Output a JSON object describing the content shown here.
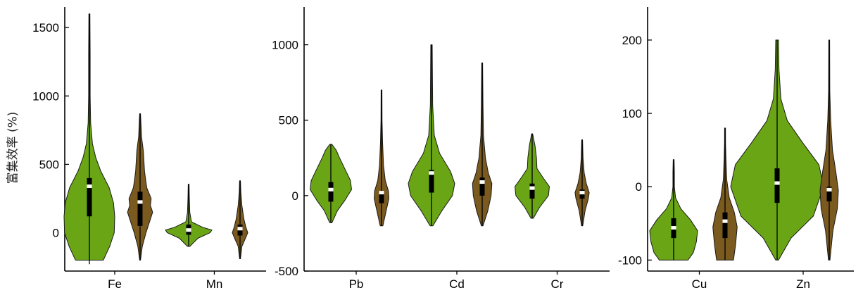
{
  "y_axis_label": "富集效率 (%)",
  "colors": {
    "green": "#6aa516",
    "brown": "#7b5a20",
    "box": "#000000",
    "median": "#ffffff"
  },
  "chart_data": [
    {
      "type": "violin",
      "ylim": [
        -280,
        1650
      ],
      "yticks": [
        0,
        500,
        1000,
        1500
      ],
      "ytick_labels": [
        "0",
        "500",
        "1000",
        "1500"
      ],
      "categories": [
        "Fe",
        "Mn"
      ],
      "violins": [
        {
          "category": "Fe",
          "color": "green",
          "min": -230,
          "max": 1600,
          "q1": 120,
          "q3": 400,
          "median": 340,
          "density": [
            [
              -200,
              0.55
            ],
            [
              -100,
              0.8
            ],
            [
              0,
              0.98
            ],
            [
              120,
              1.0
            ],
            [
              220,
              0.95
            ],
            [
              330,
              0.78
            ],
            [
              450,
              0.45
            ],
            [
              550,
              0.25
            ],
            [
              650,
              0.12
            ],
            [
              800,
              0.05
            ],
            [
              1000,
              0.03
            ],
            [
              1300,
              0.03
            ],
            [
              1600,
              0.02
            ]
          ]
        },
        {
          "category": "Fe",
          "color": "brown",
          "min": -200,
          "max": 870,
          "q1": 50,
          "q3": 300,
          "median": 225,
          "density": [
            [
              -200,
              0.02
            ],
            [
              -100,
              0.15
            ],
            [
              0,
              0.4
            ],
            [
              100,
              0.7
            ],
            [
              150,
              0.85
            ],
            [
              200,
              0.7
            ],
            [
              250,
              0.75
            ],
            [
              330,
              0.45
            ],
            [
              450,
              0.3
            ],
            [
              600,
              0.22
            ],
            [
              700,
              0.1
            ],
            [
              870,
              0.01
            ]
          ]
        },
        {
          "category": "Mn",
          "color": "green",
          "min": -100,
          "max": 355,
          "q1": -15,
          "q3": 60,
          "median": 20,
          "density": [
            [
              -100,
              0.05
            ],
            [
              -40,
              0.4
            ],
            [
              0,
              0.92
            ],
            [
              20,
              1.0
            ],
            [
              40,
              0.6
            ],
            [
              80,
              0.12
            ],
            [
              150,
              0.05
            ],
            [
              250,
              0.03
            ],
            [
              355,
              0.01
            ]
          ]
        },
        {
          "category": "Mn",
          "color": "brown",
          "min": -190,
          "max": 380,
          "q1": -20,
          "q3": 60,
          "median": 30,
          "density": [
            [
              -190,
              0.01
            ],
            [
              -100,
              0.12
            ],
            [
              -40,
              0.35
            ],
            [
              0,
              0.5
            ],
            [
              40,
              0.38
            ],
            [
              100,
              0.25
            ],
            [
              200,
              0.12
            ],
            [
              300,
              0.05
            ],
            [
              380,
              0.01
            ]
          ]
        }
      ]
    },
    {
      "type": "violin",
      "ylim": [
        -500,
        1250
      ],
      "yticks": [
        -500,
        0,
        500,
        1000
      ],
      "ytick_labels": [
        "-500",
        "0",
        "500",
        "1000"
      ],
      "categories": [
        "Pb",
        "Cd",
        "Cr"
      ],
      "violins": [
        {
          "category": "Pb",
          "color": "green",
          "min": -180,
          "max": 340,
          "q1": -40,
          "q3": 90,
          "median": 40,
          "density": [
            [
              -180,
              0.05
            ],
            [
              -100,
              0.3
            ],
            [
              -30,
              0.65
            ],
            [
              40,
              0.95
            ],
            [
              100,
              0.9
            ],
            [
              160,
              0.7
            ],
            [
              250,
              0.4
            ],
            [
              300,
              0.25
            ],
            [
              340,
              0.05
            ]
          ]
        },
        {
          "category": "Pb",
          "color": "brown",
          "min": -200,
          "max": 700,
          "q1": -50,
          "q3": 30,
          "median": 20,
          "density": [
            [
              -200,
              0.1
            ],
            [
              -100,
              0.35
            ],
            [
              -20,
              0.55
            ],
            [
              30,
              0.52
            ],
            [
              100,
              0.28
            ],
            [
              200,
              0.15
            ],
            [
              350,
              0.08
            ],
            [
              500,
              0.04
            ],
            [
              700,
              0.01
            ]
          ]
        },
        {
          "category": "Cd",
          "color": "green",
          "min": -200,
          "max": 1000,
          "q1": 20,
          "q3": 170,
          "median": 150,
          "density": [
            [
              -200,
              0.06
            ],
            [
              -100,
              0.45
            ],
            [
              0,
              0.9
            ],
            [
              80,
              1.0
            ],
            [
              160,
              0.82
            ],
            [
              280,
              0.35
            ],
            [
              400,
              0.12
            ],
            [
              600,
              0.05
            ],
            [
              800,
              0.04
            ],
            [
              1000,
              0.03
            ]
          ]
        },
        {
          "category": "Cd",
          "color": "brown",
          "min": -200,
          "max": 880,
          "q1": 0,
          "q3": 120,
          "median": 90,
          "density": [
            [
              -200,
              0.05
            ],
            [
              -100,
              0.35
            ],
            [
              0,
              0.55
            ],
            [
              80,
              0.6
            ],
            [
              150,
              0.38
            ],
            [
              250,
              0.2
            ],
            [
              400,
              0.08
            ],
            [
              600,
              0.05
            ],
            [
              880,
              0.01
            ]
          ]
        },
        {
          "category": "Cr",
          "color": "green",
          "min": -150,
          "max": 410,
          "q1": -20,
          "q3": 80,
          "median": 50,
          "density": [
            [
              -150,
              0.05
            ],
            [
              -80,
              0.3
            ],
            [
              0,
              0.68
            ],
            [
              60,
              0.72
            ],
            [
              120,
              0.45
            ],
            [
              180,
              0.2
            ],
            [
              250,
              0.18
            ],
            [
              330,
              0.12
            ],
            [
              410,
              0.02
            ]
          ]
        },
        {
          "category": "Cr",
          "color": "brown",
          "min": -200,
          "max": 370,
          "q1": -20,
          "q3": 40,
          "median": 20,
          "density": [
            [
              -200,
              0.04
            ],
            [
              -100,
              0.2
            ],
            [
              -20,
              0.42
            ],
            [
              20,
              0.48
            ],
            [
              80,
              0.28
            ],
            [
              150,
              0.14
            ],
            [
              250,
              0.06
            ],
            [
              370,
              0.01
            ]
          ]
        }
      ]
    },
    {
      "type": "violin",
      "ylim": [
        -115,
        245
      ],
      "yticks": [
        -100,
        0,
        100,
        200
      ],
      "ytick_labels": [
        "-100",
        "0",
        "100",
        "200"
      ],
      "categories": [
        "Cu",
        "Zn"
      ],
      "violins": [
        {
          "category": "Cu",
          "color": "green",
          "min": -100,
          "max": 37,
          "q1": -70,
          "q3": -43,
          "median": -56,
          "density": [
            [
              -100,
              0.6
            ],
            [
              -90,
              0.82
            ],
            [
              -75,
              0.95
            ],
            [
              -60,
              1.0
            ],
            [
              -45,
              0.7
            ],
            [
              -30,
              0.3
            ],
            [
              -15,
              0.08
            ],
            [
              0,
              0.03
            ],
            [
              20,
              0.03
            ],
            [
              37,
              0.01
            ]
          ]
        },
        {
          "category": "Cu",
          "color": "brown",
          "min": -100,
          "max": 80,
          "q1": -70,
          "q3": -35,
          "median": -47,
          "density": [
            [
              -100,
              0.5
            ],
            [
              -80,
              0.62
            ],
            [
              -55,
              0.72
            ],
            [
              -35,
              0.55
            ],
            [
              -15,
              0.25
            ],
            [
              10,
              0.1
            ],
            [
              40,
              0.05
            ],
            [
              60,
              0.03
            ],
            [
              80,
              0.01
            ]
          ]
        },
        {
          "category": "Zn",
          "color": "green",
          "min": -100,
          "max": 200,
          "q1": -22,
          "q3": 25,
          "median": 5,
          "density": [
            [
              -100,
              0.03
            ],
            [
              -70,
              0.3
            ],
            [
              -40,
              0.78
            ],
            [
              0,
              1.0
            ],
            [
              30,
              0.9
            ],
            [
              60,
              0.55
            ],
            [
              90,
              0.22
            ],
            [
              120,
              0.08
            ],
            [
              160,
              0.04
            ],
            [
              200,
              0.03
            ]
          ]
        },
        {
          "category": "Zn",
          "color": "brown",
          "min": -100,
          "max": 200,
          "q1": -20,
          "q3": 0,
          "median": -4,
          "density": [
            [
              -100,
              0.05
            ],
            [
              -60,
              0.25
            ],
            [
              -30,
              0.55
            ],
            [
              -5,
              0.62
            ],
            [
              20,
              0.45
            ],
            [
              50,
              0.22
            ],
            [
              90,
              0.1
            ],
            [
              130,
              0.04
            ],
            [
              200,
              0.01
            ]
          ]
        }
      ]
    }
  ]
}
